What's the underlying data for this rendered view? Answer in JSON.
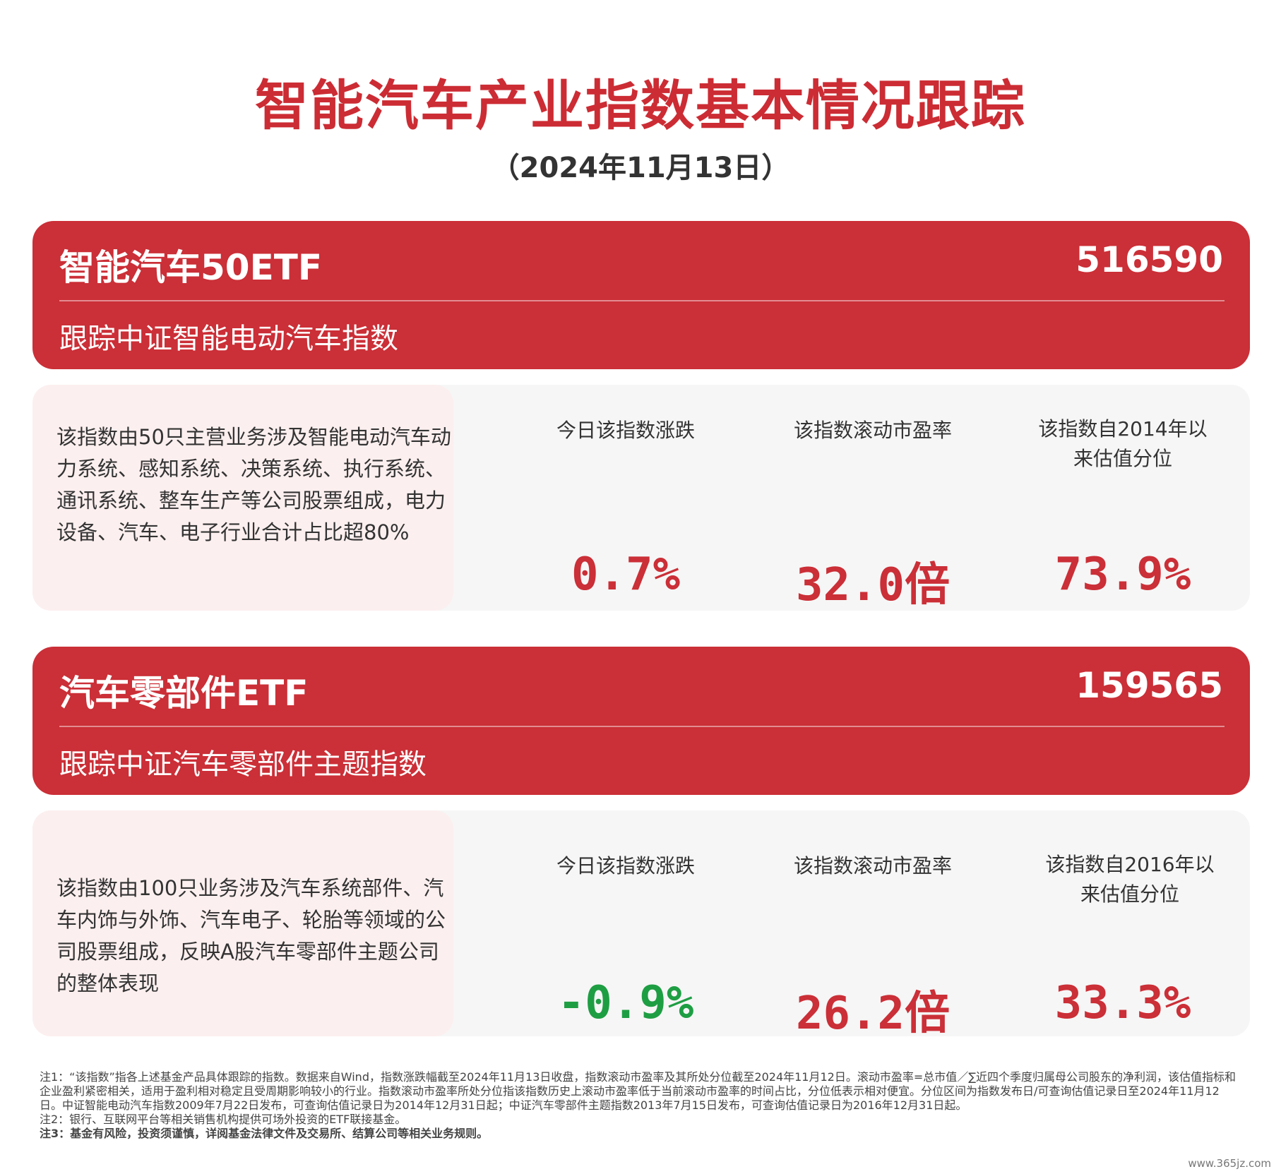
{
  "header": {
    "title": "智能汽车产业指数基本情况跟踪",
    "date": "（2024年11月13日）"
  },
  "funds": [
    {
      "name": "智能汽车50ETF",
      "code": "516590",
      "tracking": "跟踪中证智能电动汽车指数",
      "description": "该指数由50只主营业务涉及智能电动汽车动力系统、感知系统、决策系统、执行系统、通讯系统、整车生产等公司股票组成，电力设备、汽车、电子行业合计占比超80%",
      "metrics": [
        {
          "label": "今日该指数涨跌",
          "value": "0.7%",
          "sign": "positive"
        },
        {
          "label": "该指数滚动市盈率",
          "value": "32.0倍",
          "sign": "positive"
        },
        {
          "label": "该指数自2014年以来估值分位",
          "value": "73.9%",
          "sign": "positive"
        }
      ]
    },
    {
      "name": "汽车零部件ETF",
      "code": "159565",
      "tracking": "跟踪中证汽车零部件主题指数",
      "description": "该指数由100只业务涉及汽车系统部件、汽车内饰与外饰、汽车电子、轮胎等领域的公司股票组成，反映A股汽车零部件主题公司的整体表现",
      "metrics": [
        {
          "label": "今日该指数涨跌",
          "value": "-0.9%",
          "sign": "negative"
        },
        {
          "label": "该指数滚动市盈率",
          "value": "26.2倍",
          "sign": "positive"
        },
        {
          "label": "该指数自2016年以来估值分位",
          "value": "33.3%",
          "sign": "positive"
        }
      ]
    }
  ],
  "notes": {
    "note1": "注1：“该指数”指各上述基金产品具体跟踪的指数。数据来自Wind，指数涨跌幅截至2024年11月13日收盘，指数滚动市盈率及其所处分位截至2024年11月12日。滚动市盈率=总市值／∑近四个季度归属母公司股东的净利润，该估值指标和企业盈利紧密相关，适用于盈利相对稳定且受周期影响较小的行业。指数滚动市盈率所处分位指该指数历史上滚动市盈率低于当前滚动市盈率的时间占比，分位低表示相对便宜。分位区间为指数发布日/可查询估值记录日至2024年11月12日。中证智能电动汽车指数2009年7月22日发布，可查询估值记录日为2014年12月31日起；中证汽车零部件主题指数2013年7月15日发布，可查询估值记录日为2016年12月31日起。",
    "note2": "注2：银行、互联网平台等相关销售机构提供可场外投资的ETF联接基金。",
    "note3": "注3：基金有风险，投资须谨慎，详阅基金法律文件及交易所、结算公司等相关业务规则。"
  },
  "watermark": "www.365jz.com",
  "colors": {
    "brand_red": "#cb2f37",
    "negative_green": "#1e9e43",
    "desc_bg": "#fcefef",
    "panel_bg": "#f6f6f6"
  }
}
